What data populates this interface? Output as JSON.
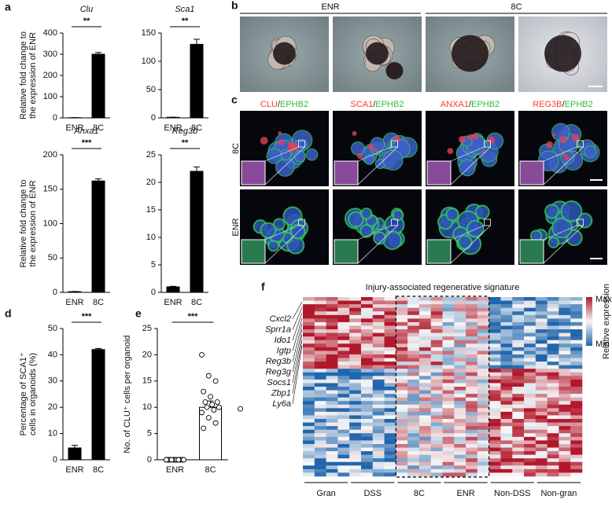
{
  "panels": [
    "a",
    "b",
    "c",
    "d",
    "e",
    "f"
  ],
  "chart_data": [
    {
      "type": "bar",
      "title": "Clu",
      "ylabel": [
        "Relative fold change to",
        "the expression of ENR"
      ],
      "categories": [
        "ENR",
        "8C"
      ],
      "values": [
        1,
        300
      ],
      "errors": [
        0.3,
        8
      ],
      "ylim": [
        0,
        400
      ],
      "yticks": [
        0,
        100,
        200,
        300,
        400
      ],
      "significance": "**",
      "color": "#000000"
    },
    {
      "type": "bar",
      "title": "Sca1",
      "categories": [
        "ENR",
        "8C"
      ],
      "values": [
        1,
        130
      ],
      "errors": [
        0.3,
        9
      ],
      "ylim": [
        0,
        150
      ],
      "yticks": [
        0,
        50,
        100,
        150
      ],
      "significance": "**",
      "color": "#000000"
    },
    {
      "type": "bar",
      "title": "Anxa1",
      "ylabel": [
        "Relative fold change to",
        "the expression of ENR"
      ],
      "categories": [
        "ENR",
        "8C"
      ],
      "values": [
        1,
        162
      ],
      "errors": [
        0.3,
        3
      ],
      "ylim": [
        0,
        200
      ],
      "yticks": [
        0,
        50,
        100,
        150,
        200
      ],
      "significance": "***",
      "color": "#000000"
    },
    {
      "type": "bar",
      "title": "Reg3b",
      "categories": [
        "ENR",
        "8C"
      ],
      "values": [
        1,
        22
      ],
      "errors": [
        0.1,
        0.8
      ],
      "ylim": [
        0,
        25
      ],
      "yticks": [
        0,
        5,
        10,
        15,
        20,
        25
      ],
      "significance": "**",
      "color": "#000000"
    },
    {
      "type": "bar",
      "ylabel": [
        "Percentage of SCA1⁺",
        "cells in organoids (%)"
      ],
      "categories": [
        "ENR",
        "8C"
      ],
      "values": [
        4.5,
        42
      ],
      "errors": [
        1,
        0.4
      ],
      "ylim": [
        0,
        50
      ],
      "yticks": [
        0,
        10,
        20,
        30,
        40,
        50
      ],
      "significance": "***",
      "color": "#000000"
    },
    {
      "type": "bar_points",
      "ylabel": [
        "No. of CLU⁺ cells per organoid"
      ],
      "categories": [
        "ENR",
        "8C"
      ],
      "values": [
        0,
        10
      ],
      "errors": [
        0,
        1.2
      ],
      "points": [
        [
          0,
          0,
          0,
          0,
          0,
          0,
          0,
          0,
          0,
          0,
          0,
          0
        ],
        [
          20,
          16,
          15,
          13,
          12,
          11,
          11,
          10.5,
          10,
          10,
          9.5,
          9,
          8,
          7,
          6,
          9.7
        ]
      ],
      "ylim": [
        0,
        25
      ],
      "yticks": [
        0,
        5,
        10,
        15,
        20,
        25
      ],
      "significance": "***",
      "color": "#ffffff"
    }
  ],
  "micrographs": {
    "groups": [
      "ENR",
      "8C"
    ]
  },
  "immunofluorescence": {
    "stains": [
      {
        "marker": "CLU",
        "separator": "/",
        "counterstain": "EPHB2"
      },
      {
        "marker": "SCA1",
        "separator": "/",
        "counterstain": "EPHB2"
      },
      {
        "marker": "ANXA1",
        "separator": "/",
        "counterstain": "EPHB2"
      },
      {
        "marker": "REG3B",
        "separator": "/",
        "counterstain": "EPHB2"
      }
    ],
    "rows": [
      "8C",
      "ENR"
    ]
  },
  "heatmap": {
    "title": "Injury-associated regenerative signature",
    "genes": [
      "Cxcl2",
      "Sprr1a",
      "Ido1",
      "Igtp",
      "Reg3b",
      "Reg3g",
      "Socs1",
      "Zbp1",
      "Ly6a"
    ],
    "groups": [
      "Gran",
      "DSS",
      "8C",
      "ENR",
      "Non-DSS",
      "Non-gran"
    ],
    "colorbar": {
      "label": "Relative expression",
      "max": "Max",
      "min": "Min"
    }
  }
}
